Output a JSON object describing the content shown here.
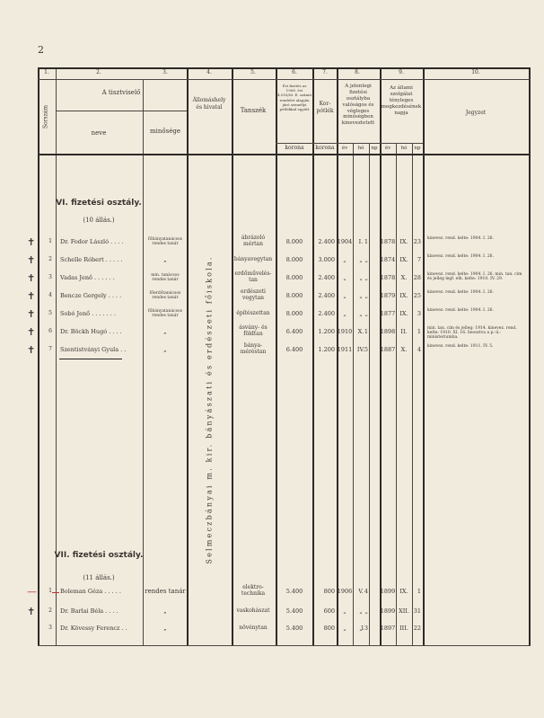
{
  "page_number": "2",
  "header": {
    "col_numbers": [
      "1.",
      "2.",
      "3.",
      "4.",
      "5.",
      "6.",
      "7.",
      "8.",
      "9.",
      "10."
    ],
    "sorszam": "Sorszám",
    "tisztviselo": "A tisztviselő",
    "neve": "neve",
    "minosege": "minősége",
    "allomashely": "Állomáshely és hivatal",
    "tanszek": "Tanszék",
    "col6": "Évi fizetés az 1908. évi 4.016/M. E. számú rendelet alapján járó személyi pótlékkal együtt",
    "col7": "Kor-pótlék",
    "col8": "A jelenlegi fizetési osztályba valóságos és végleges minőségben kineveztetett",
    "col9": "Az állami szolgálat tényleges megkezdésének napja",
    "col10": "Jegyzet",
    "korona": "korona",
    "ev": "év",
    "ho": "hó",
    "nap": "np"
  },
  "institution": "Selmeczbányai m. kir. bányászati és erdészeti főiskola.",
  "sections": [
    {
      "title": "VI. fizetési osztály.",
      "count": "(10 állás.)",
      "rows": [
        {
          "mark": "✝",
          "num": "1",
          "name": "Dr. Fodor László . . . .",
          "rank": "főbányatanácsos rendes tanár",
          "subject": "ábrázoló mértan",
          "salary": "8.000",
          "bonus": "2.400",
          "yr": "1904",
          "mo": "I.",
          "day": "1",
          "s_yr": "1878",
          "s_mo": "IX.",
          "s_day": "23",
          "note": "kinevez. rend. kelte: 1904. I. 26."
        },
        {
          "mark": "✝",
          "num": "2",
          "name": "Schelle Róbert . . . . .",
          "rank": "„",
          "subject": "bányavegytan",
          "salary": "8.000",
          "bonus": "3.000",
          "yr": "„",
          "mo": "„",
          "day": "„",
          "s_yr": "1874",
          "s_mo": "IX.",
          "s_day": "7",
          "note": "kinevez. rend. kelte: 1904. I. 26."
        },
        {
          "mark": "✝",
          "num": "3",
          "name": "Vadas Jenő . . . . . .",
          "rank": "min. tanácsos rendes tanár",
          "subject": "erdőművelés-tan",
          "salary": "8.000",
          "bonus": "2.400",
          "yr": "„",
          "mo": "„",
          "day": "„",
          "s_yr": "1878",
          "s_mo": "X.",
          "s_day": "28",
          "note": "kinevez. rend. kelte: 1904. I. 26. min. tan. cím és jelleg legf. elh. kelte: 1910. IV. 29."
        },
        {
          "mark": "✝",
          "num": "4",
          "name": "Bencze Gergely . . . .",
          "rank": "főerdőtanácsos rendes tanár",
          "subject": "erdészeti vegytan",
          "salary": "8.000",
          "bonus": "2.400",
          "yr": "„",
          "mo": "„",
          "day": "„",
          "s_yr": "1879",
          "s_mo": "IX.",
          "s_day": "25",
          "note": "kinevez. rend. kelte: 1904. I. 26."
        },
        {
          "mark": "✝",
          "num": "5",
          "name": "Sobó Jenő . . . . . . .",
          "rank": "főbányatanácsos rendes tanár",
          "subject": "építészettan",
          "salary": "8.000",
          "bonus": "2.400",
          "yr": "„",
          "mo": "„",
          "day": "„",
          "s_yr": "1877",
          "s_mo": "IX.",
          "s_day": "3",
          "note": "kinevez. rend. kelte: 1904. I. 26."
        },
        {
          "mark": "✝",
          "num": "6",
          "name": "Dr. Böckh Hugó . . . .",
          "rank": "„",
          "subject": "ásvány- és földtan",
          "salary": "6.400",
          "bonus": "1.200",
          "yr": "1910",
          "mo": "X.",
          "day": "1",
          "s_yr": "1898",
          "s_mo": "II.",
          "s_day": "1",
          "note": "min. tan. cím és jelleg: 1914. kinevez. rend. kelte: 1910. XI. 16. beosztva a p.-ü.-ministeriumba."
        },
        {
          "mark": "✝",
          "num": "7",
          "name": "Szentistványi Gyula . .",
          "rank": "„",
          "subject": "bánya-méréstan",
          "salary": "6.400",
          "bonus": "1.200",
          "yr": "1911",
          "mo": "IV.",
          "day": "5",
          "s_yr": "1887",
          "s_mo": "X.",
          "s_day": "4",
          "note": "kinevez. rend. kelte: 1911. IV. 5."
        }
      ]
    },
    {
      "title": "VII. fizetési osztály.",
      "count": "(11 állás.)",
      "rows": [
        {
          "mark": "—",
          "num": "1",
          "name": "Boleman Géza . . . . .",
          "rank": "rendes tanár",
          "subject": "elektro-technika",
          "salary": "5.400",
          "bonus": "800",
          "yr": "1906",
          "mo": "V.",
          "day": "4",
          "s_yr": "1899",
          "s_mo": "IX.",
          "s_day": "1",
          "note": ""
        },
        {
          "mark": "✝",
          "num": "2",
          "name": "Dr. Barlai Béla . . . .",
          "rank": "„",
          "subject": "vaskohászat",
          "salary": "5.400",
          "bonus": "600",
          "yr": "„",
          "mo": "„",
          "day": "„",
          "s_yr": "1899",
          "s_mo": "XII.",
          "s_day": "31",
          "note": ""
        },
        {
          "mark": "",
          "num": "3",
          "name": "Dr. Kövessy Ferencz . .",
          "rank": "„",
          "subject": "növénytan",
          "salary": "5.400",
          "bonus": "800",
          "yr": "„",
          "mo": "„",
          "day": "13",
          "s_yr": "1897",
          "s_mo": "III.",
          "s_day": "22",
          "note": ""
        }
      ]
    }
  ],
  "colors": {
    "paper": "#f1ebde",
    "ink": "#3a3530",
    "red_mark": "#c0392b"
  }
}
